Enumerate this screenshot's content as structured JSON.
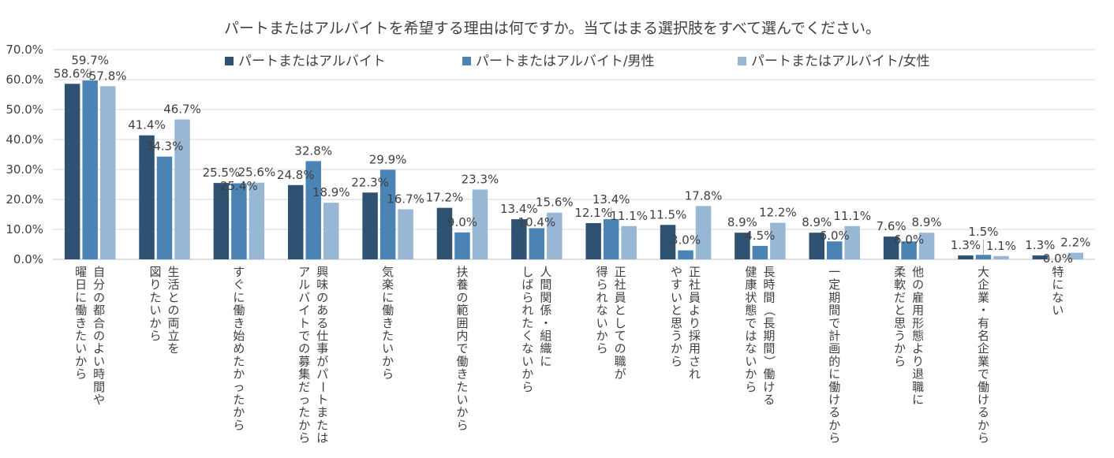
{
  "chart_data": {
    "type": "bar",
    "title": "パートまたはアルバイトを希望する理由は何ですか。当てはまる選択肢をすべて選んでください。",
    "ylim": [
      0,
      70
    ],
    "yticks": [
      "0.0%",
      "10.0%",
      "20.0%",
      "30.0%",
      "40.0%",
      "50.0%",
      "60.0%",
      "70.0%"
    ],
    "ytick_values": [
      0,
      10,
      20,
      30,
      40,
      50,
      60,
      70
    ],
    "legend_position": "top",
    "categories": [
      [
        "自分の都合のよい時間や",
        "曜日に働きたいから"
      ],
      [
        "生活との両立を",
        "図りたいから"
      ],
      [
        "すぐに働き始めたかったから"
      ],
      [
        "興味のある仕事がパートまたは",
        "アルバイトでの募集だったから"
      ],
      [
        "気楽に働きたいから"
      ],
      [
        "扶養の範囲内で働きたいから"
      ],
      [
        "人間関係・組織に",
        "しばられたくないから"
      ],
      [
        "正社員としての職が",
        "得られないから"
      ],
      [
        "正社員より採用され",
        "やすいと思うから"
      ],
      [
        "長時間（長期間）働ける",
        "健康状態ではないから"
      ],
      [
        "一定期間で計画的に働けるから"
      ],
      [
        "他の雇用形態より退職に",
        "柔軟だと思うから"
      ],
      [
        "大企業・有名企業で働けるから"
      ],
      [
        "特にない"
      ]
    ],
    "series": [
      {
        "name": "パートまたはアルバイト",
        "color": "#2f5272",
        "values": [
          58.6,
          41.4,
          25.5,
          24.8,
          22.3,
          17.2,
          13.4,
          12.1,
          11.5,
          8.9,
          8.9,
          7.6,
          1.3,
          1.3
        ],
        "labels": [
          "58.6%",
          "41.4%",
          "25.5%",
          "24.8%",
          "22.3%",
          "17.2%",
          "13.4%",
          "12.1%",
          "11.5%",
          "8.9%",
          "8.9%",
          "7.6%",
          "1.3%",
          "1.3%"
        ]
      },
      {
        "name": "パートまたはアルバイト/男性",
        "color": "#4b83b4",
        "values": [
          59.7,
          34.3,
          25.4,
          32.8,
          29.9,
          9.0,
          10.4,
          13.4,
          3.0,
          4.5,
          6.0,
          6.0,
          1.5,
          0.0
        ],
        "labels": [
          "59.7%",
          "34.3%",
          "25.4%",
          "32.8%",
          "29.9%",
          "9.0%",
          "10.4%",
          "13.4%",
          "3.0%",
          "4.5%",
          "6.0%",
          "6.0%",
          "1.5%",
          "0.0%"
        ]
      },
      {
        "name": "パートまたはアルバイト/女性",
        "color": "#98b7d4",
        "values": [
          57.8,
          46.7,
          25.6,
          18.9,
          16.7,
          23.3,
          15.6,
          11.1,
          17.8,
          12.2,
          11.1,
          8.9,
          1.1,
          2.2
        ],
        "labels": [
          "57.8%",
          "46.7%",
          "25.6%",
          "18.9%",
          "16.7%",
          "23.3%",
          "15.6%",
          "11.1%",
          "17.8%",
          "12.2%",
          "11.1%",
          "8.9%",
          "1.1%",
          "2.2%"
        ]
      }
    ]
  }
}
